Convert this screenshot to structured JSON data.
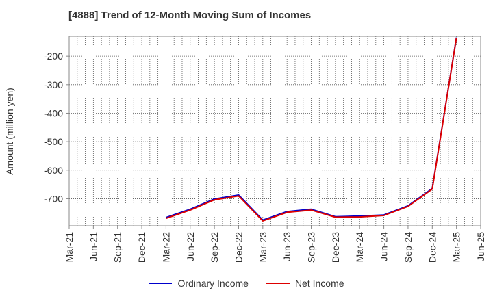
{
  "chart_data": {
    "type": "line",
    "title": "[4888]  Trend of 12-Month Moving Sum of Incomes",
    "xlabel": "",
    "ylabel": "Amount (million yen)",
    "ylim": [
      -795,
      -130
    ],
    "yticks": [
      -200,
      -300,
      -400,
      -500,
      -600,
      -700
    ],
    "ytick_labels": [
      "-200",
      "-300",
      "-400",
      "-500",
      "-600",
      "-700"
    ],
    "categories": [
      "Mar-21",
      "Jun-21",
      "Sep-21",
      "Dec-21",
      "Mar-22",
      "Jun-22",
      "Sep-22",
      "Dec-22",
      "Mar-23",
      "Jun-23",
      "Sep-23",
      "Dec-23",
      "Mar-24",
      "Jun-24",
      "Sep-24",
      "Dec-24",
      "Mar-25",
      "Jun-25"
    ],
    "grid": true,
    "legend_position": "bottom",
    "series": [
      {
        "name": "Ordinary Income",
        "color": "#0000cc",
        "values": [
          null,
          null,
          null,
          null,
          -766,
          -737,
          -701,
          -687,
          -775,
          -745,
          -737,
          -763,
          -761,
          -757,
          -725,
          -664,
          -134,
          null
        ]
      },
      {
        "name": "Net Income",
        "color": "#dd0000",
        "values": [
          null,
          null,
          null,
          null,
          -769,
          -740,
          -704,
          -690,
          -778,
          -748,
          -740,
          -765,
          -764,
          -759,
          -727,
          -666,
          -135,
          null
        ]
      }
    ]
  }
}
